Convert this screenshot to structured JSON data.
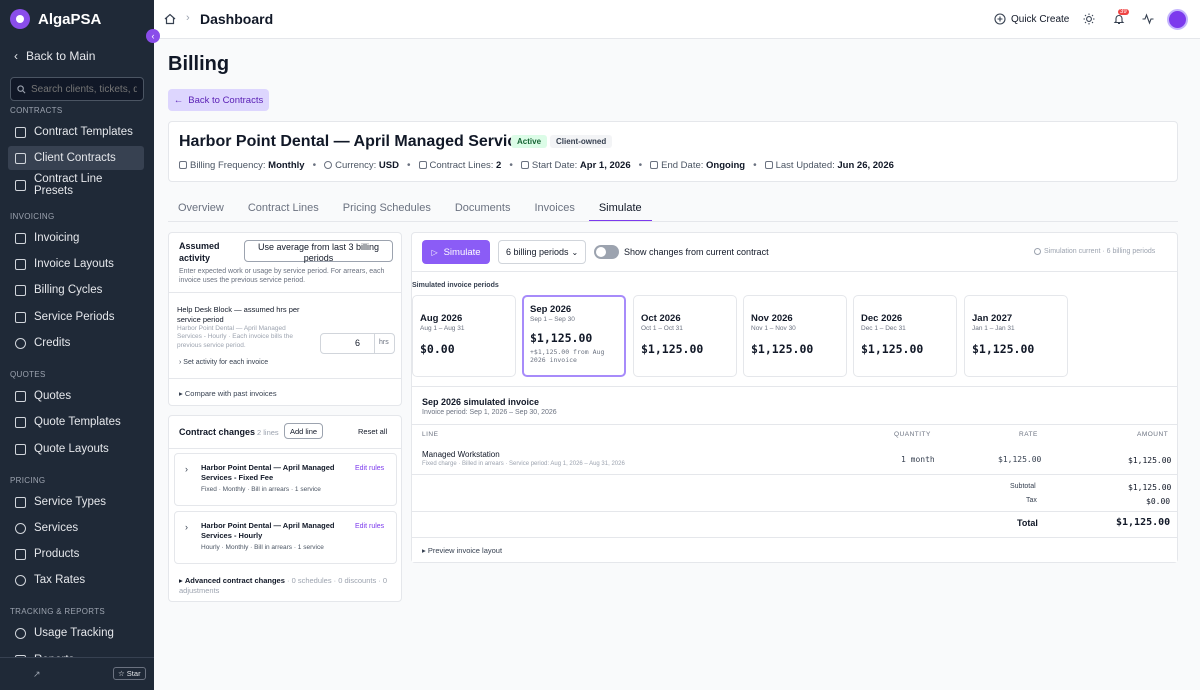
{
  "app": {
    "name": "AlgaPSA",
    "back_label": "Back to Main",
    "search_placeholder": "Search clients, tickets, doc"
  },
  "sidebar": {
    "contracts_section": "CONTRACTS",
    "contracts": [
      "Contract Templates",
      "Client Contracts",
      "Contract Line Presets"
    ],
    "invoicing_section": "INVOICING",
    "invoicing": [
      "Invoicing",
      "Invoice Layouts",
      "Billing Cycles",
      "Service Periods",
      "Credits"
    ],
    "quotes_section": "QUOTES",
    "quotes": [
      "Quotes",
      "Quote Templates",
      "Quote Layouts"
    ],
    "pricing_section": "PRICING",
    "pricing": [
      "Service Types",
      "Services",
      "Products",
      "Tax Rates"
    ],
    "tracking_section": "TRACKING & REPORTS",
    "tracking": [
      "Usage Tracking",
      "Reports"
    ],
    "star_label": "☆ Star"
  },
  "header": {
    "breadcrumb": "Dashboard",
    "quick_create": "Quick Create",
    "notification_count": "39"
  },
  "page": {
    "title": "Billing",
    "back_label": "Back to Contracts"
  },
  "contract": {
    "title": "Harbor Point Dental — April Managed Services",
    "status": "Active",
    "ownership": "Client-owned",
    "meta": {
      "frequency_label": "Billing Frequency:",
      "frequency": "Monthly",
      "currency_label": "Currency:",
      "currency": "USD",
      "lines_label": "Contract Lines:",
      "lines": "2",
      "start_label": "Start Date:",
      "start": "Apr 1, 2026",
      "end_label": "End Date:",
      "end": "Ongoing",
      "updated_label": "Last Updated:",
      "updated": "Jun 26, 2026"
    }
  },
  "tabs": [
    "Overview",
    "Contract Lines",
    "Pricing Schedules",
    "Documents",
    "Invoices",
    "Simulate"
  ],
  "activity": {
    "title": "Assumed activity",
    "avg_button": "Use average from last 3 billing periods",
    "help": "Enter expected work or usage by service period. For arrears, each invoice uses the previous service period.",
    "item_title": "Help Desk Block — assumed hrs per service period",
    "item_desc": "Harbor Point Dental — April Managed Services - Hourly · Each invoice bills the previous service period.",
    "hours_value": "6",
    "hours_unit": "hrs",
    "per_invoice_link": "Set activity for each invoice",
    "compare_link": "Compare with past invoices"
  },
  "changes": {
    "title": "Contract changes",
    "count": "2 lines",
    "add_line": "Add line",
    "reset": "Reset all",
    "lines": [
      {
        "name": "Harbor Point Dental — April Managed Services - Fixed Fee",
        "meta": "Fixed · Monthly · Bill in arrears · 1 service",
        "edit": "Edit rules"
      },
      {
        "name": "Harbor Point Dental — April Managed Services - Hourly",
        "meta": "Hourly · Monthly · Bill in arrears · 1 service",
        "edit": "Edit rules"
      }
    ],
    "advanced_label": "Advanced contract changes",
    "advanced_meta": "· 0 schedules · 0 discounts · 0 adjustments"
  },
  "simulate": {
    "button": "Simulate",
    "periods_select": "6 billing periods",
    "toggle_label": "Show changes from current contract",
    "toggle_on": false,
    "status": "Simulation current · 6 billing periods",
    "periods_heading": "Simulated invoice periods",
    "periods": [
      {
        "name": "Aug 2026",
        "range": "Aug 1 – Aug 31",
        "amount": "$0.00",
        "delta": ""
      },
      {
        "name": "Sep 2026",
        "range": "Sep 1 – Sep 30",
        "amount": "$1,125.00",
        "delta": "+$1,125.00 from Aug 2026 invoice"
      },
      {
        "name": "Oct 2026",
        "range": "Oct 1 – Oct 31",
        "amount": "$1,125.00",
        "delta": ""
      },
      {
        "name": "Nov 2026",
        "range": "Nov 1 – Nov 30",
        "amount": "$1,125.00",
        "delta": ""
      },
      {
        "name": "Dec 2026",
        "range": "Dec 1 – Dec 31",
        "amount": "$1,125.00",
        "delta": ""
      },
      {
        "name": "Jan 2027",
        "range": "Jan 1 – Jan 31",
        "amount": "$1,125.00",
        "delta": ""
      }
    ],
    "selected_index": 1
  },
  "invoice": {
    "title": "Sep 2026 simulated invoice",
    "period": "Invoice period: Sep 1, 2026 – Sep 30, 2026",
    "columns": [
      "LINE",
      "QUANTITY",
      "RATE",
      "AMOUNT"
    ],
    "line": {
      "name": "Managed Workstation",
      "desc": "Fixed charge · Billed in arrears · Service period: Aug 1, 2026 – Aug 31, 2026",
      "qty": "1 month",
      "rate": "$1,125.00",
      "amount": "$1,125.00"
    },
    "subtotal_label": "Subtotal",
    "subtotal": "$1,125.00",
    "tax_label": "Tax",
    "tax": "$0.00",
    "total_label": "Total",
    "total": "$1,125.00",
    "preview_link": "Preview invoice layout"
  }
}
